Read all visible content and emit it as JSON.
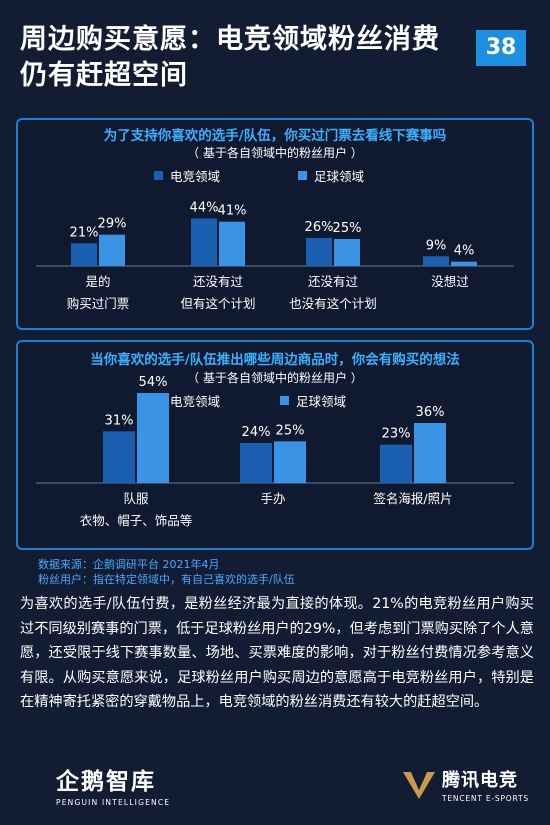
{
  "header": {
    "title": "周边购买意愿：电竞领域粉丝消费仍有赶超空间",
    "page_number": "38"
  },
  "colors": {
    "esports": "#1a5fb0",
    "football": "#3b93e6",
    "accent": "#3cb0ff",
    "border": "#1f7fd0"
  },
  "chart_data": [
    {
      "type": "bar",
      "title": "为了支持你喜欢的选手/队伍，你买过门票去看线下赛事吗",
      "subtitle": "（ 基于各自领域中的粉丝用户 ）",
      "categories": [
        [
          "是的",
          "购买过门票"
        ],
        [
          "还没有过",
          "但有这个计划"
        ],
        [
          "还没有过",
          "也没有这个计划"
        ],
        [
          "没想过"
        ]
      ],
      "series": [
        {
          "name": "电竞领域",
          "values": [
            21,
            44,
            26,
            9
          ],
          "labels": [
            "21%",
            "44%",
            "26%",
            "9%"
          ]
        },
        {
          "name": "足球领域",
          "values": [
            29,
            41,
            25,
            4
          ],
          "labels": [
            "29%",
            "41%",
            "25%",
            "4%"
          ]
        }
      ],
      "ylim": [
        0,
        50
      ]
    },
    {
      "type": "bar",
      "title": "当你喜欢的选手/队伍推出哪些周边商品时，你会有购买的想法",
      "subtitle": "（ 基于各自领域中的粉丝用户 ）",
      "categories": [
        [
          "队服",
          "衣物、帽子、饰品等"
        ],
        [
          "手办"
        ],
        [
          "签名海报/照片"
        ]
      ],
      "series": [
        {
          "name": "电竞领域",
          "values": [
            31,
            24,
            23
          ],
          "labels": [
            "31%",
            "24%",
            "23%"
          ]
        },
        {
          "name": "足球领域",
          "values": [
            54,
            25,
            36
          ],
          "labels": [
            "54%",
            "25%",
            "36%"
          ]
        }
      ],
      "ylim": [
        0,
        60
      ]
    }
  ],
  "source": {
    "line1": "数据来源：企鹅调研平台 2021年4月",
    "line2": "粉丝用户：指在特定领域中，有自己喜欢的选手/队伍"
  },
  "paragraph": "为喜欢的选手/队伍付费，是粉丝经济最为直接的体现。21%的电竞粉丝用户购买过不同级别赛事的门票，低于足球粉丝用户的29%，但考虑到门票购买除了个人意愿，还受限于线下赛事数量、场地、买票难度的影响，对于粉丝付费情况参考意义有限。从购买意愿来说，足球粉丝用户购买周边的意愿高于电竞粉丝用户，特别是在精神寄托紧密的穿戴物品上，电竞领域的粉丝消费还有较大的赶超空间。",
  "logos": {
    "left_cn": "企鹅智库",
    "left_en": "PENGUIN INTELLIGENCE",
    "right_cn": "腾讯电竞",
    "right_en": "TENCENT E-SPORTS"
  }
}
